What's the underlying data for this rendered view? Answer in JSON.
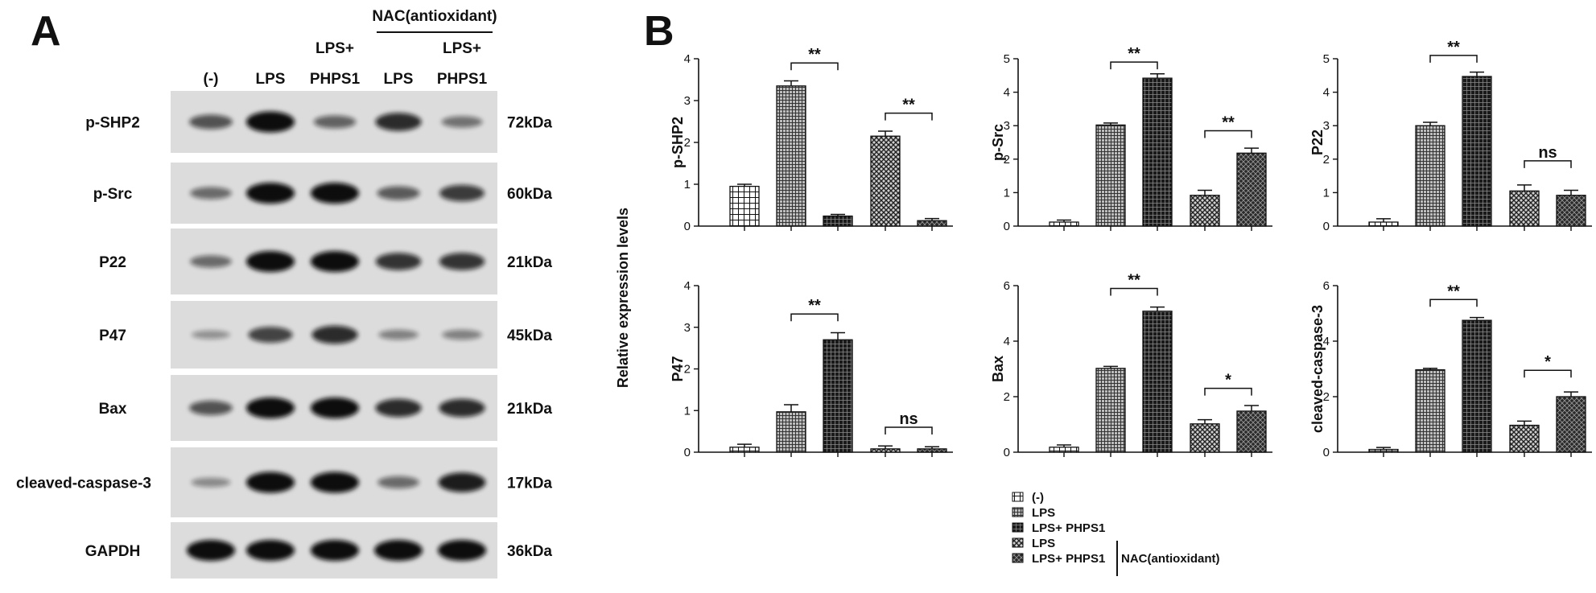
{
  "panel_a": {
    "letter": "A",
    "nac_header": "NAC(antioxidant)",
    "lanes": [
      {
        "top": "",
        "bottom": "(-)"
      },
      {
        "top": "",
        "bottom": "LPS"
      },
      {
        "top": "LPS+",
        "bottom": "PHPS1"
      },
      {
        "top": "",
        "bottom": "LPS"
      },
      {
        "top": "LPS+",
        "bottom": "PHPS1"
      }
    ],
    "blots": [
      {
        "protein": "p-SHP2",
        "size": "72kDa",
        "intensity": [
          0.55,
          1.0,
          0.45,
          0.8,
          0.35
        ]
      },
      {
        "protein": "p-Src",
        "size": "60kDa",
        "intensity": [
          0.4,
          1.0,
          1.0,
          0.5,
          0.7
        ]
      },
      {
        "protein": "P22",
        "size": "21kDa",
        "intensity": [
          0.4,
          1.0,
          1.0,
          0.75,
          0.75
        ]
      },
      {
        "protein": "P47",
        "size": "45kDa",
        "intensity": [
          0.15,
          0.65,
          0.8,
          0.25,
          0.25
        ]
      },
      {
        "protein": "Bax",
        "size": "21kDa",
        "intensity": [
          0.55,
          1.0,
          1.0,
          0.8,
          0.8
        ]
      },
      {
        "protein": "cleaved-caspase-3",
        "size": "17kDa",
        "intensity": [
          0.2,
          1.0,
          1.0,
          0.4,
          0.9
        ]
      },
      {
        "protein": "GAPDH",
        "size": "36kDa",
        "intensity": [
          1.0,
          1.0,
          1.0,
          1.0,
          1.0
        ]
      }
    ]
  },
  "panel_b": {
    "letter": "B",
    "shared_ylabel": "Relative expression levels"
  },
  "legend": {
    "entries": [
      "(-)",
      "LPS",
      "LPS+ PHPS1",
      "LPS",
      "LPS+ PHPS1"
    ],
    "bracket_label": "NAC(antioxidant)"
  },
  "colors": {
    "bar0": "#ffffff",
    "bar1": "#9a9a9a",
    "bar2": "#2a2a2a",
    "bar3": "#9a9a9a",
    "bar4": "#3a3a3a",
    "band": "#0b0b0b",
    "membrane": "#dcdcdc"
  },
  "chart_data": [
    {
      "type": "bar",
      "ylabel": "p-SHP2",
      "ylim": [
        0,
        4
      ],
      "yticks": [
        0,
        1,
        2,
        3,
        4
      ],
      "categories": [
        "(-)",
        "LPS",
        "LPS+ PHPS1",
        "LPS",
        "LPS+ PHPS1"
      ],
      "values": [
        0.95,
        3.35,
        0.24,
        2.15,
        0.13
      ],
      "errors": [
        0.05,
        0.12,
        0.04,
        0.12,
        0.05
      ],
      "annotations": [
        {
          "from": 1,
          "to": 2,
          "label": "**",
          "y": 3.9
        },
        {
          "from": 3,
          "to": 4,
          "label": "**",
          "y": 2.7
        }
      ]
    },
    {
      "type": "bar",
      "ylabel": "p-Src",
      "ylim": [
        0,
        5
      ],
      "yticks": [
        0,
        1,
        2,
        3,
        4,
        5
      ],
      "categories": [
        "(-)",
        "LPS",
        "LPS+ PHPS1",
        "LPS",
        "LPS+ PHPS1"
      ],
      "values": [
        0.12,
        3.02,
        4.42,
        0.92,
        2.18
      ],
      "errors": [
        0.06,
        0.06,
        0.13,
        0.15,
        0.15
      ],
      "annotations": [
        {
          "from": 1,
          "to": 2,
          "label": "**",
          "y": 4.9
        },
        {
          "from": 3,
          "to": 4,
          "label": "**",
          "y": 2.85
        }
      ]
    },
    {
      "type": "bar",
      "ylabel": "P22",
      "ylim": [
        0,
        5
      ],
      "yticks": [
        0,
        1,
        2,
        3,
        4,
        5
      ],
      "categories": [
        "(-)",
        "LPS",
        "LPS+ PHPS1",
        "LPS",
        "LPS+ PHPS1"
      ],
      "values": [
        0.12,
        3.0,
        4.47,
        1.05,
        0.92
      ],
      "errors": [
        0.1,
        0.1,
        0.13,
        0.18,
        0.15
      ],
      "annotations": [
        {
          "from": 1,
          "to": 2,
          "label": "**",
          "y": 5.1
        },
        {
          "from": 3,
          "to": 4,
          "label": "ns",
          "y": 1.95
        }
      ]
    },
    {
      "type": "bar",
      "ylabel": "P47",
      "ylim": [
        0,
        4
      ],
      "yticks": [
        0,
        1,
        2,
        3,
        4
      ],
      "categories": [
        "(-)",
        "LPS",
        "LPS+ PHPS1",
        "LPS",
        "LPS+ PHPS1"
      ],
      "values": [
        0.12,
        0.97,
        2.7,
        0.08,
        0.08
      ],
      "errors": [
        0.07,
        0.17,
        0.17,
        0.07,
        0.05
      ],
      "annotations": [
        {
          "from": 1,
          "to": 2,
          "label": "**",
          "y": 3.32
        },
        {
          "from": 3,
          "to": 4,
          "label": "ns",
          "y": 0.6
        }
      ]
    },
    {
      "type": "bar",
      "ylabel": "Bax",
      "ylim": [
        0,
        6
      ],
      "yticks": [
        0,
        2,
        4,
        6
      ],
      "categories": [
        "(-)",
        "LPS",
        "LPS+ PHPS1",
        "LPS",
        "LPS+ PHPS1"
      ],
      "values": [
        0.18,
        3.02,
        5.08,
        1.02,
        1.48
      ],
      "errors": [
        0.08,
        0.07,
        0.15,
        0.15,
        0.2
      ],
      "annotations": [
        {
          "from": 1,
          "to": 2,
          "label": "**",
          "y": 5.9
        },
        {
          "from": 3,
          "to": 4,
          "label": "*",
          "y": 2.3
        }
      ]
    },
    {
      "type": "bar",
      "ylabel": "cleaved-caspase-3",
      "ylim": [
        0,
        6
      ],
      "yticks": [
        0,
        2,
        4,
        6
      ],
      "categories": [
        "(-)",
        "LPS",
        "LPS+ PHPS1",
        "LPS",
        "LPS+ PHPS1"
      ],
      "values": [
        0.1,
        2.97,
        4.75,
        0.97,
        2.0
      ],
      "errors": [
        0.07,
        0.05,
        0.1,
        0.15,
        0.17
      ],
      "annotations": [
        {
          "from": 1,
          "to": 2,
          "label": "**",
          "y": 5.5
        },
        {
          "from": 3,
          "to": 4,
          "label": "*",
          "y": 2.95
        }
      ]
    }
  ]
}
